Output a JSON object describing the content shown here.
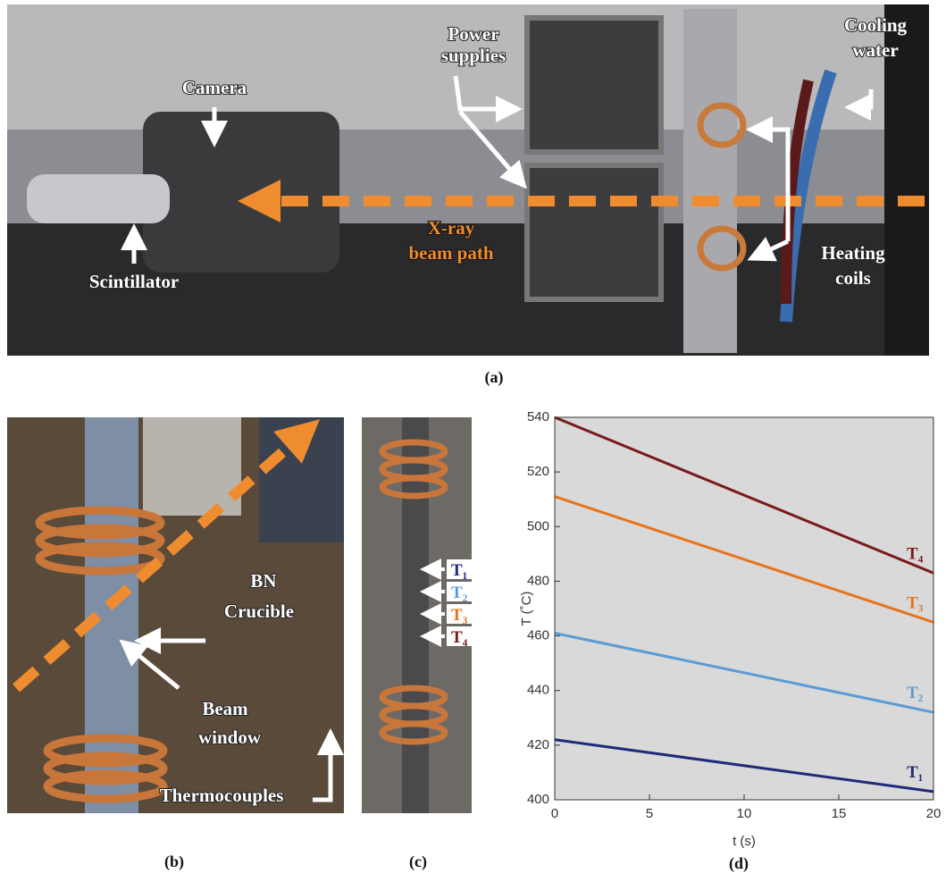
{
  "panel_a": {
    "caption": "(a)",
    "labels": {
      "camera": [
        "Camera"
      ],
      "power_supplies": [
        "Power",
        "supplies"
      ],
      "cooling_water": [
        "Cooling",
        "water"
      ],
      "scintillator": [
        "Scintillator"
      ],
      "beam_path": [
        "X-ray",
        "beam path"
      ],
      "heating_coils": [
        "Heating",
        "coils"
      ]
    }
  },
  "panel_b": {
    "caption": "(b)",
    "labels": {
      "crucible": [
        "BN",
        "Crucible"
      ],
      "beam_window": [
        "Beam",
        "window"
      ],
      "thermocouples": [
        "Thermocouples"
      ]
    }
  },
  "panel_c": {
    "caption": "(c)",
    "labels": [
      "T₁",
      "T₂",
      "T₃",
      "T₄"
    ],
    "colors": [
      "#1f2a7a",
      "#5b9bd5",
      "#e8731c",
      "#7b1a1a"
    ]
  },
  "chart_data": {
    "type": "line",
    "caption": "(d)",
    "x_label": "t (s)",
    "y_label": "T (˚C)",
    "x": [
      0,
      20
    ],
    "series": [
      {
        "name": "T₁",
        "color": "#1f2a7a",
        "values": [
          422,
          403
        ]
      },
      {
        "name": "T₂",
        "color": "#5b9bd5",
        "values": [
          461,
          432
        ]
      },
      {
        "name": "T₃",
        "color": "#e8731c",
        "values": [
          511,
          465
        ]
      },
      {
        "name": "T₄",
        "color": "#7b1a1a",
        "values": [
          540,
          483
        ]
      }
    ],
    "xlim": [
      0,
      20
    ],
    "xticks": [
      0,
      5,
      10,
      15,
      20
    ],
    "ylim": [
      400,
      540
    ],
    "yticks": [
      400,
      420,
      440,
      460,
      480,
      500,
      520,
      540
    ]
  }
}
